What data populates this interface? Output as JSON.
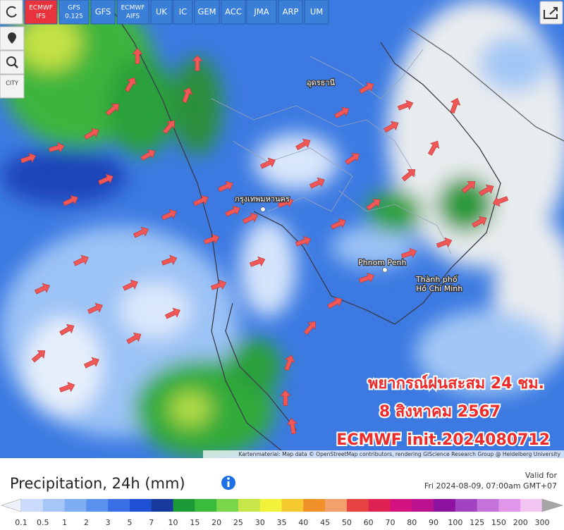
{
  "toolbar": {
    "models": [
      "ECMWF IFS",
      "GFS 0.125",
      "GFS",
      "ECMWF AIFS",
      "UK",
      "IC",
      "GEM",
      "ACC",
      "JMA",
      "ARP",
      "UM"
    ],
    "active_index": 0,
    "side_button": "CITY"
  },
  "map": {
    "places": [
      "อุดรธานี",
      "กรุงเทพมหานคร",
      "Phnom Penh",
      "Thành phố",
      "Hồ Chí Minh"
    ],
    "overlay": [
      "พยากรณ์ฝนสะสม 24 ชม.",
      "8 สิงหาคม 2567",
      "ECMWF init.2024080712"
    ],
    "attribution": "Kartenmaterial: Map data © OpenStreetMap contributors, rendering GIScience Research Group @ Heidelberg University"
  },
  "footer": {
    "title": "Precipitation, 24h (mm)",
    "valid_label": "Valid for",
    "valid_time": "Fri 2024-08-09, 07:00am GMT+07",
    "legend": {
      "labels": [
        0.1,
        0.5,
        1,
        2,
        3,
        5,
        7,
        10,
        15,
        20,
        25,
        30,
        35,
        40,
        45,
        50,
        60,
        70,
        80,
        90,
        100,
        125,
        150,
        200,
        300
      ],
      "colors": [
        "#c9dafa",
        "#a6c6f7",
        "#7fadf3",
        "#5b91ee",
        "#3a70e6",
        "#1f4fd3",
        "#173a9c",
        "#1d9a38",
        "#3bbb3c",
        "#79d64a",
        "#c6e64a",
        "#f3f23a",
        "#f4c82f",
        "#ef9029",
        "#f2a06e",
        "#e84343",
        "#df2152",
        "#d3127f",
        "#bb128f",
        "#8e12a0",
        "#a243c2",
        "#c373da",
        "#e296ea",
        "#f1c4f1"
      ]
    }
  }
}
